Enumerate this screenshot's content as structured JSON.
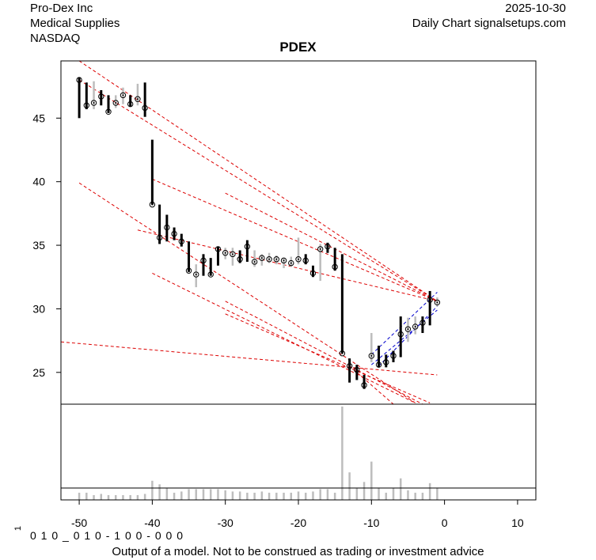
{
  "header": {
    "company": "Pro-Dex Inc",
    "sector": "Medical Supplies",
    "exchange": "NASDAQ",
    "date": "2025-10-30",
    "source": "Daily Chart signalsetups.com"
  },
  "footer": {
    "disclaimer": "Output of a model. Not to be construed as trading or investment advice",
    "bits": "0 1 0 _ 0 1 0 - 1 0 0 - 0 0 0",
    "corner": "1"
  },
  "chart_data": {
    "type": "ohlc-bars",
    "title": "PDEX",
    "x_ticks": [
      -50,
      -40,
      -30,
      -20,
      -10,
      0,
      10
    ],
    "y_ticks": [
      25,
      30,
      35,
      40,
      45
    ],
    "xlim": [
      -52.5,
      12.5
    ],
    "ylim": [
      22.5,
      49.5
    ],
    "grid": false,
    "colors": {
      "up_bar": "#000000",
      "neutral_bar": "#bdbdbd",
      "trend_red": "#dd0000",
      "trend_blue": "#0000cc",
      "volume": "#bdbdbd"
    },
    "bars": [
      {
        "x": -50,
        "high": 48.2,
        "low": 45.0,
        "close": 48.0,
        "color": "black"
      },
      {
        "x": -49,
        "high": 47.8,
        "low": 45.7,
        "close": 46.0,
        "color": "black"
      },
      {
        "x": -48,
        "high": 47.9,
        "low": 45.7,
        "close": 46.2,
        "color": "gray"
      },
      {
        "x": -47,
        "high": 47.2,
        "low": 46.0,
        "close": 46.7,
        "color": "black"
      },
      {
        "x": -46,
        "high": 46.8,
        "low": 45.4,
        "close": 45.5,
        "color": "black"
      },
      {
        "x": -45,
        "high": 46.8,
        "low": 45.8,
        "close": 46.2,
        "color": "gray"
      },
      {
        "x": -44,
        "high": 47.4,
        "low": 46.1,
        "close": 46.8,
        "color": "gray"
      },
      {
        "x": -43,
        "high": 46.8,
        "low": 45.9,
        "close": 46.1,
        "color": "black"
      },
      {
        "x": -42,
        "high": 47.7,
        "low": 46.0,
        "close": 46.5,
        "color": "gray"
      },
      {
        "x": -41,
        "high": 47.8,
        "low": 45.1,
        "close": 45.8,
        "color": "black"
      },
      {
        "x": -40,
        "high": 43.3,
        "low": 38.2,
        "close": 38.2,
        "color": "black"
      },
      {
        "x": -39,
        "high": 38.2,
        "low": 35.1,
        "close": 35.6,
        "color": "black"
      },
      {
        "x": -38,
        "high": 37.4,
        "low": 35.3,
        "close": 36.4,
        "color": "black"
      },
      {
        "x": -37,
        "high": 36.4,
        "low": 35.4,
        "close": 35.9,
        "color": "black"
      },
      {
        "x": -36,
        "high": 35.9,
        "low": 34.9,
        "close": 35.3,
        "color": "black"
      },
      {
        "x": -35,
        "high": 35.3,
        "low": 32.9,
        "close": 33.0,
        "color": "black"
      },
      {
        "x": -34,
        "high": 33.5,
        "low": 31.7,
        "close": 32.7,
        "color": "gray"
      },
      {
        "x": -33,
        "high": 34.3,
        "low": 32.6,
        "close": 33.8,
        "color": "black"
      },
      {
        "x": -32,
        "high": 34.0,
        "low": 32.6,
        "close": 32.7,
        "color": "black"
      },
      {
        "x": -31,
        "high": 34.9,
        "low": 33.4,
        "close": 34.7,
        "color": "black"
      },
      {
        "x": -30,
        "high": 34.8,
        "low": 33.9,
        "close": 34.4,
        "color": "gray"
      },
      {
        "x": -29,
        "high": 34.8,
        "low": 33.4,
        "close": 34.3,
        "color": "gray"
      },
      {
        "x": -28,
        "high": 34.6,
        "low": 33.6,
        "close": 33.9,
        "color": "black"
      },
      {
        "x": -27,
        "high": 35.4,
        "low": 33.7,
        "close": 34.9,
        "color": "black"
      },
      {
        "x": -26,
        "high": 34.6,
        "low": 33.3,
        "close": 33.7,
        "color": "gray"
      },
      {
        "x": -25,
        "high": 34.3,
        "low": 33.4,
        "close": 34.0,
        "color": "gray"
      },
      {
        "x": -24,
        "high": 34.4,
        "low": 33.6,
        "close": 33.9,
        "color": "gray"
      },
      {
        "x": -23,
        "high": 34.2,
        "low": 33.5,
        "close": 33.9,
        "color": "gray"
      },
      {
        "x": -22,
        "high": 34.0,
        "low": 33.2,
        "close": 33.8,
        "color": "gray"
      },
      {
        "x": -21,
        "high": 34.1,
        "low": 33.3,
        "close": 33.6,
        "color": "gray"
      },
      {
        "x": -20,
        "high": 35.6,
        "low": 33.5,
        "close": 33.9,
        "color": "gray"
      },
      {
        "x": -19,
        "high": 34.3,
        "low": 33.5,
        "close": 33.8,
        "color": "black"
      },
      {
        "x": -18,
        "high": 33.4,
        "low": 32.5,
        "close": 32.8,
        "color": "black"
      },
      {
        "x": -17,
        "high": 35.1,
        "low": 32.2,
        "close": 34.7,
        "color": "gray"
      },
      {
        "x": -16,
        "high": 35.2,
        "low": 34.4,
        "close": 34.9,
        "color": "black"
      },
      {
        "x": -15,
        "high": 34.8,
        "low": 33.0,
        "close": 33.3,
        "color": "black"
      },
      {
        "x": -14,
        "high": 34.3,
        "low": 26.5,
        "close": 26.5,
        "color": "black"
      },
      {
        "x": -13,
        "high": 26.1,
        "low": 24.2,
        "close": 25.5,
        "color": "black"
      },
      {
        "x": -12,
        "high": 25.6,
        "low": 24.4,
        "close": 25.2,
        "color": "black"
      },
      {
        "x": -11,
        "high": 24.8,
        "low": 23.7,
        "close": 24.0,
        "color": "black"
      },
      {
        "x": -10,
        "high": 28.1,
        "low": 25.8,
        "close": 26.3,
        "color": "gray"
      },
      {
        "x": -9,
        "high": 27.1,
        "low": 25.4,
        "close": 25.6,
        "color": "black"
      },
      {
        "x": -8,
        "high": 26.4,
        "low": 25.4,
        "close": 25.8,
        "color": "black"
      },
      {
        "x": -7,
        "high": 26.7,
        "low": 25.8,
        "close": 26.3,
        "color": "black"
      },
      {
        "x": -6,
        "high": 29.4,
        "low": 26.2,
        "close": 28.0,
        "color": "black"
      },
      {
        "x": -5,
        "high": 29.3,
        "low": 27.4,
        "close": 28.4,
        "color": "gray"
      },
      {
        "x": -4,
        "high": 29.4,
        "low": 28.0,
        "close": 28.6,
        "color": "gray"
      },
      {
        "x": -3,
        "high": 29.4,
        "low": 28.1,
        "close": 28.9,
        "color": "black"
      },
      {
        "x": -2,
        "high": 31.4,
        "low": 28.7,
        "close": 30.7,
        "color": "black"
      },
      {
        "x": -1,
        "high": 30.9,
        "low": 30.2,
        "close": 30.5,
        "color": "gray"
      }
    ],
    "trendlines_red": [
      {
        "x1": -50,
        "y1": 49.5,
        "x2": -1,
        "y2": 30.6
      },
      {
        "x1": -50,
        "y1": 48.0,
        "x2": -1,
        "y2": 30.6
      },
      {
        "x1": -50,
        "y1": 39.9,
        "x2": -4,
        "y2": 22.6
      },
      {
        "x1": -40,
        "y1": 40.2,
        "x2": -1,
        "y2": 30.6
      },
      {
        "x1": -30,
        "y1": 39.1,
        "x2": -1,
        "y2": 30.6
      },
      {
        "x1": -42,
        "y1": 36.2,
        "x2": -1,
        "y2": 30.6
      },
      {
        "x1": -40,
        "y1": 32.8,
        "x2": -4,
        "y2": 22.6
      },
      {
        "x1": -30,
        "y1": 30.6,
        "x2": -3,
        "y2": 22.5
      },
      {
        "x1": -30,
        "y1": 29.6,
        "x2": -2,
        "y2": 22.6
      },
      {
        "x1": -52.5,
        "y1": 27.4,
        "x2": -1,
        "y2": 24.8
      },
      {
        "x1": -13,
        "y1": 25.5,
        "x2": -7,
        "y2": 22.5
      }
    ],
    "trendlines_blue": [
      {
        "x1": -10,
        "y1": 26.4,
        "x2": -1,
        "y2": 31.3
      },
      {
        "x1": -10,
        "y1": 25.6,
        "x2": -1,
        "y2": 29.9
      },
      {
        "x1": -9,
        "y1": 25.5,
        "x2": -1,
        "y2": 30.2
      }
    ],
    "volume": [
      {
        "x": -50,
        "v": 0.3
      },
      {
        "x": -49,
        "v": 0.3
      },
      {
        "x": -48,
        "v": 0.2
      },
      {
        "x": -47,
        "v": 0.25
      },
      {
        "x": -46,
        "v": 0.2
      },
      {
        "x": -45,
        "v": 0.2
      },
      {
        "x": -44,
        "v": 0.2
      },
      {
        "x": -43,
        "v": 0.2
      },
      {
        "x": -42,
        "v": 0.2
      },
      {
        "x": -41,
        "v": 0.25
      },
      {
        "x": -40,
        "v": 0.8
      },
      {
        "x": -39,
        "v": 0.65
      },
      {
        "x": -38,
        "v": 0.5
      },
      {
        "x": -37,
        "v": 0.3
      },
      {
        "x": -36,
        "v": 0.35
      },
      {
        "x": -35,
        "v": 0.45
      },
      {
        "x": -34,
        "v": 0.45
      },
      {
        "x": -33,
        "v": 0.45
      },
      {
        "x": -32,
        "v": 0.45
      },
      {
        "x": -31,
        "v": 0.45
      },
      {
        "x": -30,
        "v": 0.4
      },
      {
        "x": -29,
        "v": 0.35
      },
      {
        "x": -28,
        "v": 0.35
      },
      {
        "x": -27,
        "v": 0.3
      },
      {
        "x": -26,
        "v": 0.3
      },
      {
        "x": -25,
        "v": 0.35
      },
      {
        "x": -24,
        "v": 0.3
      },
      {
        "x": -23,
        "v": 0.3
      },
      {
        "x": -22,
        "v": 0.3
      },
      {
        "x": -21,
        "v": 0.3
      },
      {
        "x": -20,
        "v": 0.35
      },
      {
        "x": -19,
        "v": 0.3
      },
      {
        "x": -18,
        "v": 0.35
      },
      {
        "x": -17,
        "v": 0.45
      },
      {
        "x": -16,
        "v": 0.45
      },
      {
        "x": -15,
        "v": 0.3
      },
      {
        "x": -14,
        "v": 3.9
      },
      {
        "x": -13,
        "v": 1.15
      },
      {
        "x": -12,
        "v": 0.5
      },
      {
        "x": -11,
        "v": 0.75
      },
      {
        "x": -10,
        "v": 1.6
      },
      {
        "x": -9,
        "v": 0.5
      },
      {
        "x": -8,
        "v": 0.3
      },
      {
        "x": -7,
        "v": 0.5
      },
      {
        "x": -6,
        "v": 0.9
      },
      {
        "x": -5,
        "v": 0.4
      },
      {
        "x": -4,
        "v": 0.3
      },
      {
        "x": -3,
        "v": 0.3
      },
      {
        "x": -2,
        "v": 0.7
      },
      {
        "x": -1,
        "v": 0.5
      }
    ],
    "volume_ylim": [
      0,
      4.0
    ]
  }
}
